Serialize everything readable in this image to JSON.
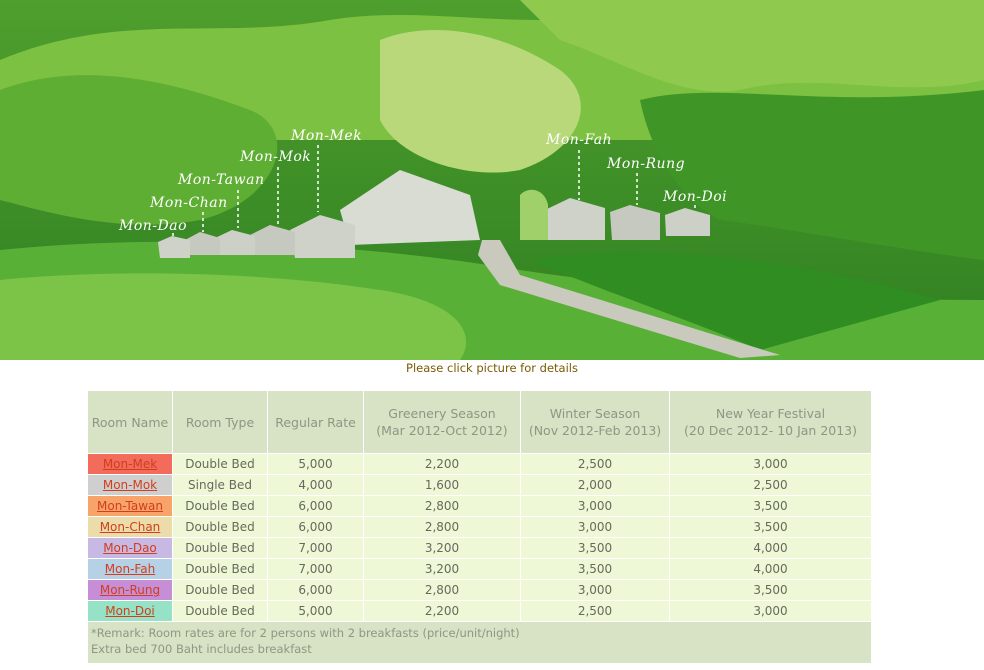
{
  "scene": {
    "labels": [
      "Mon-Mek",
      "Mon-Mok",
      "Mon-Tawan",
      "Mon-Chan",
      "Mon-Dao",
      "Mon-Fah",
      "Mon-Rung",
      "Mon-Doi"
    ]
  },
  "note": "Please click picture for details",
  "table": {
    "headers": [
      "Room Name",
      "Room Type",
      "Regular Rate",
      "Greenery Season",
      "(Mar 2012-Oct 2012)",
      "Winter Season",
      "(Nov 2012-Feb 2013)",
      "New Year Festival",
      "(20 Dec 2012- 10 Jan 2013)"
    ],
    "rows": [
      {
        "name": "Mon-Mek",
        "color": "#f36b5a",
        "type": "Double Bed",
        "regular": "5,000",
        "greenery": "2,200",
        "winter": "2,500",
        "newyear": "3,000"
      },
      {
        "name": "Mon-Mok",
        "color": "#cfcfcf",
        "type": "Single Bed",
        "regular": "4,000",
        "greenery": "1,600",
        "winter": "2,000",
        "newyear": "2,500"
      },
      {
        "name": "Mon-Tawan",
        "color": "#f8a36a",
        "type": "Double Bed",
        "regular": "6,000",
        "greenery": "2,800",
        "winter": "3,000",
        "newyear": "3,500"
      },
      {
        "name": "Mon-Chan",
        "color": "#ecdcaa",
        "type": "Double Bed",
        "regular": "6,000",
        "greenery": "2,800",
        "winter": "3,000",
        "newyear": "3,500"
      },
      {
        "name": "Mon-Dao",
        "color": "#c7b8e4",
        "type": "Double Bed",
        "regular": "7,000",
        "greenery": "3,200",
        "winter": "3,500",
        "newyear": "4,000"
      },
      {
        "name": "Mon-Fah",
        "color": "#b6d0e6",
        "type": "Double Bed",
        "regular": "7,000",
        "greenery": "3,200",
        "winter": "3,500",
        "newyear": "4,000"
      },
      {
        "name": "Mon-Rung",
        "color": "#c58ed6",
        "type": "Double Bed",
        "regular": "6,000",
        "greenery": "2,800",
        "winter": "3,000",
        "newyear": "3,500"
      },
      {
        "name": "Mon-Doi",
        "color": "#95e2c6",
        "type": "Double Bed",
        "regular": "5,000",
        "greenery": "2,200",
        "winter": "2,500",
        "newyear": "3,000"
      }
    ],
    "remark": [
      "*Remark: Room rates are for 2 persons with 2 breakfasts (price/unit/night)",
      "Extra bed 700 Baht includes breakfast"
    ]
  }
}
